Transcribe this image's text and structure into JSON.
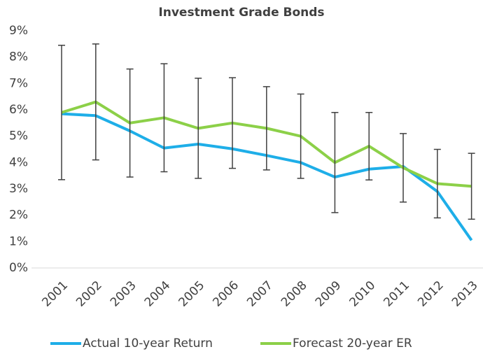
{
  "chart_data": {
    "type": "line",
    "title": "Investment Grade Bonds",
    "categories": [
      "2001",
      "2002",
      "2003",
      "2004",
      "2005",
      "2006",
      "2007",
      "2008",
      "2009",
      "2010",
      "2011",
      "2012",
      "2013"
    ],
    "series": [
      {
        "name": "Actual 10-year Return",
        "color": "#1eaee8",
        "values": [
          5.85,
          5.78,
          5.2,
          4.55,
          4.7,
          4.52,
          4.27,
          4.0,
          3.45,
          3.75,
          3.85,
          2.9,
          1.05
        ]
      },
      {
        "name": "Forecast 20-year ER",
        "color": "#8cd048",
        "values": [
          5.9,
          6.3,
          5.5,
          5.7,
          5.3,
          5.5,
          5.3,
          5.0,
          4.0,
          4.62,
          3.8,
          3.2,
          3.1
        ],
        "errors": [
          2.55,
          2.2,
          2.05,
          2.05,
          1.9,
          1.72,
          1.58,
          1.6,
          1.9,
          1.28,
          1.3,
          1.3,
          1.25
        ],
        "error_color": "#404040"
      }
    ],
    "ylim": [
      0,
      9
    ],
    "yticks": [
      {
        "value": 0,
        "label": "0%"
      },
      {
        "value": 1,
        "label": "1%"
      },
      {
        "value": 2,
        "label": "2%"
      },
      {
        "value": 3,
        "label": "3%"
      },
      {
        "value": 4,
        "label": "4%"
      },
      {
        "value": 5,
        "label": "5%"
      },
      {
        "value": 6,
        "label": "6%"
      },
      {
        "value": 7,
        "label": "7%"
      },
      {
        "value": 8,
        "label": "8%"
      },
      {
        "value": 9,
        "label": "9%"
      }
    ],
    "grid": false,
    "legend": "bottom"
  }
}
